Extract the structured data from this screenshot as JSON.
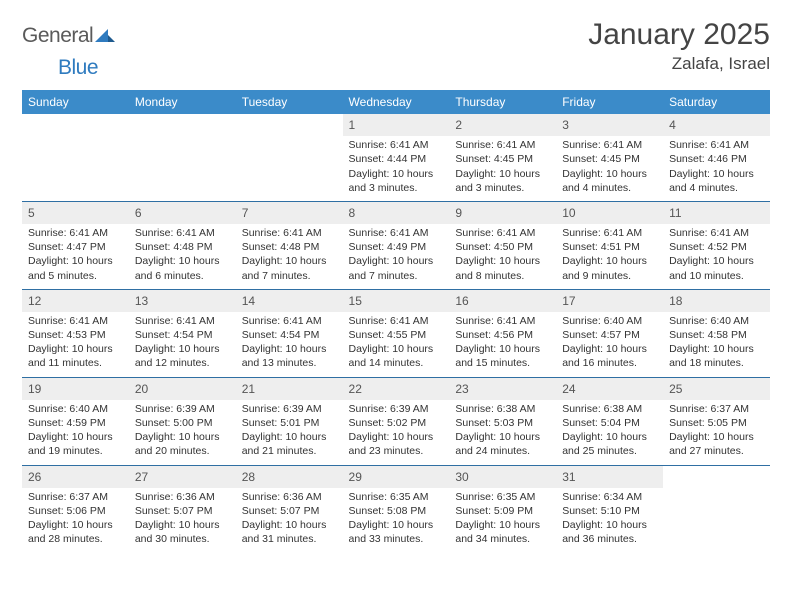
{
  "brand": {
    "part1": "General",
    "part2": "Blue"
  },
  "title": "January 2025",
  "location": "Zalafa, Israel",
  "colors": {
    "header_bg": "#3b8bc9",
    "header_text": "#ffffff",
    "daynum_bg": "#eeeeee",
    "row_divider": "#2f6fa3",
    "body_text": "#333333",
    "logo_gray": "#5a5a5a",
    "logo_blue": "#2f7bbf"
  },
  "typography": {
    "title_fontsize": 30,
    "location_fontsize": 17,
    "header_fontsize": 12,
    "daynum_fontsize": 12,
    "body_fontsize": 10.5
  },
  "weekdays": [
    "Sunday",
    "Monday",
    "Tuesday",
    "Wednesday",
    "Thursday",
    "Friday",
    "Saturday"
  ],
  "weeks": [
    [
      null,
      null,
      null,
      {
        "n": "1",
        "sr": "6:41 AM",
        "ss": "4:44 PM",
        "dl": "10 hours and 3 minutes."
      },
      {
        "n": "2",
        "sr": "6:41 AM",
        "ss": "4:45 PM",
        "dl": "10 hours and 3 minutes."
      },
      {
        "n": "3",
        "sr": "6:41 AM",
        "ss": "4:45 PM",
        "dl": "10 hours and 4 minutes."
      },
      {
        "n": "4",
        "sr": "6:41 AM",
        "ss": "4:46 PM",
        "dl": "10 hours and 4 minutes."
      }
    ],
    [
      {
        "n": "5",
        "sr": "6:41 AM",
        "ss": "4:47 PM",
        "dl": "10 hours and 5 minutes."
      },
      {
        "n": "6",
        "sr": "6:41 AM",
        "ss": "4:48 PM",
        "dl": "10 hours and 6 minutes."
      },
      {
        "n": "7",
        "sr": "6:41 AM",
        "ss": "4:48 PM",
        "dl": "10 hours and 7 minutes."
      },
      {
        "n": "8",
        "sr": "6:41 AM",
        "ss": "4:49 PM",
        "dl": "10 hours and 7 minutes."
      },
      {
        "n": "9",
        "sr": "6:41 AM",
        "ss": "4:50 PM",
        "dl": "10 hours and 8 minutes."
      },
      {
        "n": "10",
        "sr": "6:41 AM",
        "ss": "4:51 PM",
        "dl": "10 hours and 9 minutes."
      },
      {
        "n": "11",
        "sr": "6:41 AM",
        "ss": "4:52 PM",
        "dl": "10 hours and 10 minutes."
      }
    ],
    [
      {
        "n": "12",
        "sr": "6:41 AM",
        "ss": "4:53 PM",
        "dl": "10 hours and 11 minutes."
      },
      {
        "n": "13",
        "sr": "6:41 AM",
        "ss": "4:54 PM",
        "dl": "10 hours and 12 minutes."
      },
      {
        "n": "14",
        "sr": "6:41 AM",
        "ss": "4:54 PM",
        "dl": "10 hours and 13 minutes."
      },
      {
        "n": "15",
        "sr": "6:41 AM",
        "ss": "4:55 PM",
        "dl": "10 hours and 14 minutes."
      },
      {
        "n": "16",
        "sr": "6:41 AM",
        "ss": "4:56 PM",
        "dl": "10 hours and 15 minutes."
      },
      {
        "n": "17",
        "sr": "6:40 AM",
        "ss": "4:57 PM",
        "dl": "10 hours and 16 minutes."
      },
      {
        "n": "18",
        "sr": "6:40 AM",
        "ss": "4:58 PM",
        "dl": "10 hours and 18 minutes."
      }
    ],
    [
      {
        "n": "19",
        "sr": "6:40 AM",
        "ss": "4:59 PM",
        "dl": "10 hours and 19 minutes."
      },
      {
        "n": "20",
        "sr": "6:39 AM",
        "ss": "5:00 PM",
        "dl": "10 hours and 20 minutes."
      },
      {
        "n": "21",
        "sr": "6:39 AM",
        "ss": "5:01 PM",
        "dl": "10 hours and 21 minutes."
      },
      {
        "n": "22",
        "sr": "6:39 AM",
        "ss": "5:02 PM",
        "dl": "10 hours and 23 minutes."
      },
      {
        "n": "23",
        "sr": "6:38 AM",
        "ss": "5:03 PM",
        "dl": "10 hours and 24 minutes."
      },
      {
        "n": "24",
        "sr": "6:38 AM",
        "ss": "5:04 PM",
        "dl": "10 hours and 25 minutes."
      },
      {
        "n": "25",
        "sr": "6:37 AM",
        "ss": "5:05 PM",
        "dl": "10 hours and 27 minutes."
      }
    ],
    [
      {
        "n": "26",
        "sr": "6:37 AM",
        "ss": "5:06 PM",
        "dl": "10 hours and 28 minutes."
      },
      {
        "n": "27",
        "sr": "6:36 AM",
        "ss": "5:07 PM",
        "dl": "10 hours and 30 minutes."
      },
      {
        "n": "28",
        "sr": "6:36 AM",
        "ss": "5:07 PM",
        "dl": "10 hours and 31 minutes."
      },
      {
        "n": "29",
        "sr": "6:35 AM",
        "ss": "5:08 PM",
        "dl": "10 hours and 33 minutes."
      },
      {
        "n": "30",
        "sr": "6:35 AM",
        "ss": "5:09 PM",
        "dl": "10 hours and 34 minutes."
      },
      {
        "n": "31",
        "sr": "6:34 AM",
        "ss": "5:10 PM",
        "dl": "10 hours and 36 minutes."
      },
      null
    ]
  ],
  "labels": {
    "sunrise": "Sunrise: ",
    "sunset": "Sunset: ",
    "daylight": "Daylight: "
  }
}
